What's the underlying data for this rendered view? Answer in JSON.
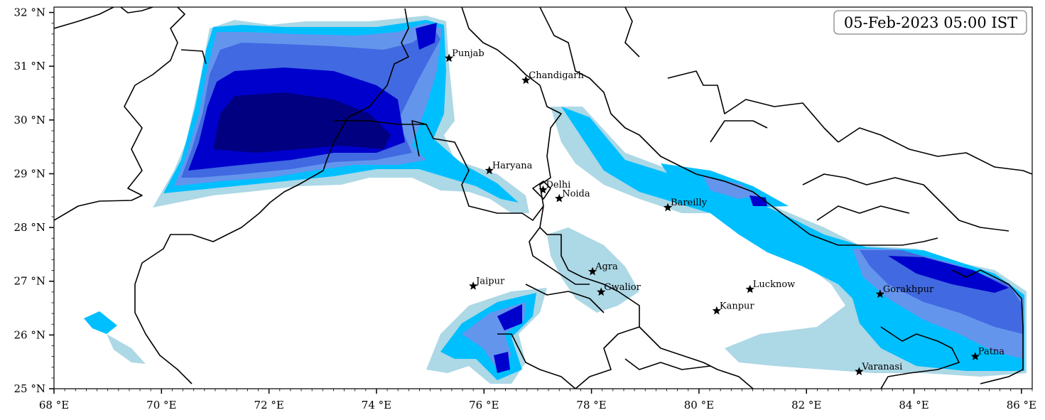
{
  "timestamp": "05-Feb-2023 05:00 IST",
  "map_extent": {
    "lon": [
      68,
      86.2
    ],
    "lat": [
      25,
      32.1
    ]
  },
  "lon_ticks": [
    {
      "value": 68,
      "label": "68 °E"
    },
    {
      "value": 70,
      "label": "70 °E"
    },
    {
      "value": 72,
      "label": "72 °E"
    },
    {
      "value": 74,
      "label": "74 °E"
    },
    {
      "value": 76,
      "label": "76 °E"
    },
    {
      "value": 78,
      "label": "78 °E"
    },
    {
      "value": 80,
      "label": "80 °E"
    },
    {
      "value": 82,
      "label": "82 °E"
    },
    {
      "value": 84,
      "label": "84 °E"
    },
    {
      "value": 86,
      "label": "86 °E"
    }
  ],
  "lat_ticks": [
    {
      "value": 25,
      "label": "25 °N"
    },
    {
      "value": 26,
      "label": "26 °N"
    },
    {
      "value": 27,
      "label": "27 °N"
    },
    {
      "value": 28,
      "label": "28 °N"
    },
    {
      "value": 29,
      "label": "29 °N"
    },
    {
      "value": 30,
      "label": "30 °N"
    },
    {
      "value": 31,
      "label": "31 °N"
    },
    {
      "value": 32,
      "label": "32 °N"
    }
  ],
  "cities": [
    {
      "name": "Punjab",
      "lon": 75.35,
      "lat": 31.15
    },
    {
      "name": "Chandigarh",
      "lon": 76.78,
      "lat": 30.74
    },
    {
      "name": "Haryana",
      "lon": 76.1,
      "lat": 29.06
    },
    {
      "name": "Delhi",
      "lon": 77.1,
      "lat": 28.7
    },
    {
      "name": "Noida",
      "lon": 77.4,
      "lat": 28.54
    },
    {
      "name": "Bareilly",
      "lon": 79.42,
      "lat": 28.37
    },
    {
      "name": "Agra",
      "lon": 78.02,
      "lat": 27.18
    },
    {
      "name": "Jaipur",
      "lon": 75.8,
      "lat": 26.91
    },
    {
      "name": "Gwalior",
      "lon": 78.18,
      "lat": 26.8
    },
    {
      "name": "Lucknow",
      "lon": 80.95,
      "lat": 26.85
    },
    {
      "name": "Kanpur",
      "lon": 80.33,
      "lat": 26.45
    },
    {
      "name": "Gorakhpur",
      "lon": 83.37,
      "lat": 26.76
    },
    {
      "name": "Varanasi",
      "lon": 82.98,
      "lat": 25.32
    },
    {
      "name": "Patna",
      "lon": 85.14,
      "lat": 25.6
    }
  ],
  "colors": {
    "level_1": "#add8e6",
    "level_2": "#00bfff",
    "level_3": "#6495ed",
    "level_4": "#4169e1",
    "level_5": "#0000cd",
    "level_6": "#000080",
    "boundary": "#000000"
  }
}
